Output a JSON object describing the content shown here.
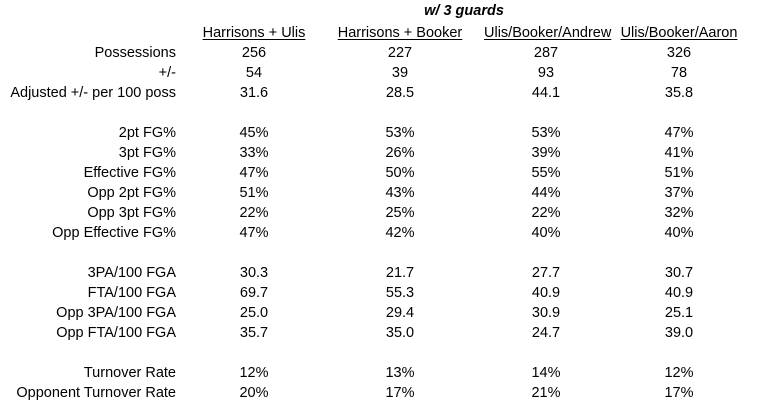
{
  "title": "w/ 3 guards",
  "columns": [
    "Harrisons + Ulis",
    "Harrisons + Booker",
    "Ulis/Booker/Andrew",
    "Ulis/Booker/Aaron"
  ],
  "rows": [
    {
      "label": "Possessions",
      "values": [
        "256",
        "227",
        "287",
        "326"
      ]
    },
    {
      "label": "+/-",
      "values": [
        "54",
        "39",
        "93",
        "78"
      ]
    },
    {
      "label": "Adjusted +/- per 100 poss",
      "values": [
        "31.6",
        "28.5",
        "44.1",
        "35.8"
      ]
    },
    {
      "label": "2pt FG%",
      "values": [
        "45%",
        "53%",
        "53%",
        "47%"
      ]
    },
    {
      "label": "3pt FG%",
      "values": [
        "33%",
        "26%",
        "39%",
        "41%"
      ]
    },
    {
      "label": "Effective FG%",
      "values": [
        "47%",
        "50%",
        "55%",
        "51%"
      ]
    },
    {
      "label": "Opp 2pt FG%",
      "values": [
        "51%",
        "43%",
        "44%",
        "37%"
      ]
    },
    {
      "label": "Opp 3pt FG%",
      "values": [
        "22%",
        "25%",
        "22%",
        "32%"
      ]
    },
    {
      "label": "Opp Effective FG%",
      "values": [
        "47%",
        "42%",
        "40%",
        "40%"
      ]
    },
    {
      "label": "3PA/100 FGA",
      "values": [
        "30.3",
        "21.7",
        "27.7",
        "30.7"
      ]
    },
    {
      "label": "FTA/100 FGA",
      "values": [
        "69.7",
        "55.3",
        "40.9",
        "40.9"
      ]
    },
    {
      "label": "Opp 3PA/100 FGA",
      "values": [
        "25.0",
        "29.4",
        "30.9",
        "25.1"
      ]
    },
    {
      "label": "Opp FTA/100 FGA",
      "values": [
        "35.7",
        "35.0",
        "24.7",
        "39.0"
      ]
    },
    {
      "label": "Turnover Rate",
      "values": [
        "12%",
        "13%",
        "14%",
        "12%"
      ]
    },
    {
      "label": "Opponent Turnover Rate",
      "values": [
        "20%",
        "17%",
        "21%",
        "17%"
      ]
    }
  ]
}
